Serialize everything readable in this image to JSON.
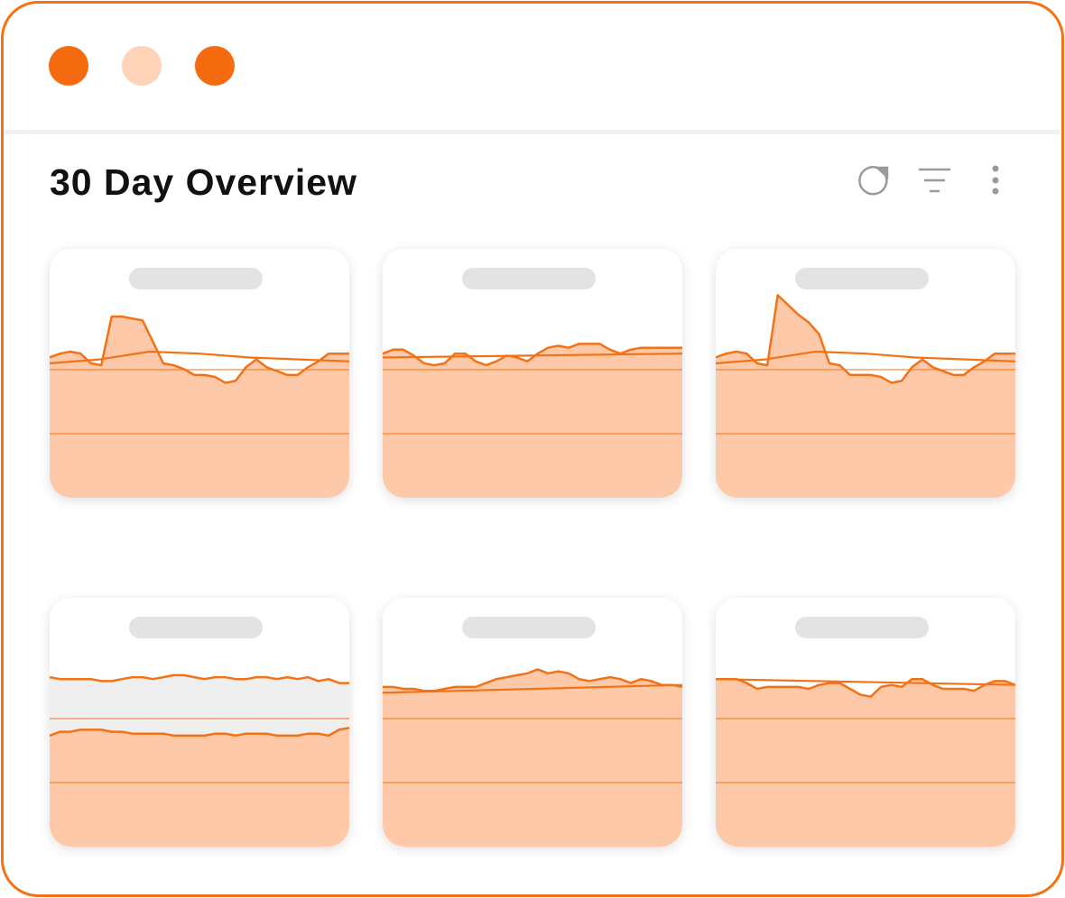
{
  "window": {
    "title": "30 Day Overview"
  },
  "chart_data": [
    {
      "type": "area",
      "ylim": [
        0,
        125
      ],
      "series": [
        {
          "color": "#f47216",
          "fill": "#fdc9a8",
          "values": [
            72,
            74,
            75,
            74,
            69,
            68,
            93,
            93,
            92,
            91,
            80,
            69,
            68,
            66,
            63,
            63,
            62,
            59,
            60,
            67,
            71,
            67,
            65,
            63,
            63,
            67,
            70,
            74,
            74,
            74
          ]
        },
        {
          "style": "line",
          "color": "#f47216",
          "values": [
            69,
            71,
            75,
            74,
            72,
            71,
            70
          ]
        }
      ]
    },
    {
      "type": "area",
      "ylim": [
        0,
        125
      ],
      "series": [
        {
          "color": "#f47216",
          "fill": "#fdc9a8",
          "values": [
            74,
            76,
            76,
            73,
            69,
            68,
            69,
            74,
            74,
            70,
            68,
            70,
            73,
            72,
            70,
            74,
            77,
            78,
            77,
            79,
            79,
            79,
            76,
            74,
            76,
            77,
            77,
            77,
            77,
            77
          ]
        },
        {
          "style": "line",
          "color": "#f47216",
          "values": [
            72,
            74
          ]
        }
      ]
    },
    {
      "type": "area",
      "ylim": [
        0,
        125
      ],
      "series": [
        {
          "color": "#f47216",
          "fill": "#fdc9a8",
          "values": [
            72,
            74,
            75,
            74,
            69,
            68,
            104,
            99,
            94,
            90,
            84,
            69,
            68,
            63,
            63,
            63,
            62,
            59,
            60,
            67,
            71,
            67,
            65,
            63,
            63,
            67,
            70,
            74,
            74,
            74
          ]
        },
        {
          "style": "line",
          "color": "#f47216",
          "values": [
            69,
            71,
            75,
            74,
            72,
            71,
            70
          ]
        }
      ]
    },
    {
      "type": "area",
      "ylim": [
        0,
        125
      ],
      "series": [
        {
          "color": "#f47216",
          "fill": "#efefef",
          "values": [
            87,
            86,
            86,
            86,
            86,
            85,
            85,
            86,
            87,
            87,
            86,
            87,
            88,
            88,
            87,
            86,
            87,
            87,
            86,
            86,
            87,
            87,
            86,
            87,
            86,
            87,
            85,
            86,
            84,
            84
          ]
        },
        {
          "color": "#f47216",
          "fill": "#fdc9a8",
          "values": [
            57,
            59,
            59,
            60,
            60,
            60,
            59,
            59,
            58,
            58,
            58,
            58,
            57,
            57,
            57,
            57,
            58,
            58,
            57,
            58,
            58,
            58,
            57,
            57,
            57,
            58,
            58,
            57,
            60,
            61
          ]
        }
      ]
    },
    {
      "type": "area",
      "ylim": [
        0,
        125
      ],
      "series": [
        {
          "color": "#f47216",
          "fill": "#fdc9a8",
          "values": [
            82,
            82,
            81,
            81,
            80,
            80,
            81,
            82,
            82,
            82,
            84,
            86,
            87,
            88,
            89,
            91,
            89,
            90,
            89,
            86,
            85,
            86,
            87,
            86,
            84,
            86,
            85,
            83,
            83,
            82
          ]
        },
        {
          "style": "line",
          "color": "#f47216",
          "values": [
            79,
            83
          ]
        }
      ]
    },
    {
      "type": "area",
      "ylim": [
        0,
        125
      ],
      "series": [
        {
          "color": "#f47216",
          "fill": "#fdc9a8",
          "values": [
            86,
            86,
            86,
            84,
            81,
            82,
            82,
            82,
            82,
            81,
            83,
            84,
            84,
            81,
            78,
            77,
            82,
            83,
            82,
            86,
            86,
            83,
            81,
            81,
            81,
            80,
            83,
            85,
            85,
            83
          ]
        },
        {
          "style": "line",
          "color": "#f47216",
          "values": [
            86,
            83
          ]
        }
      ]
    }
  ]
}
